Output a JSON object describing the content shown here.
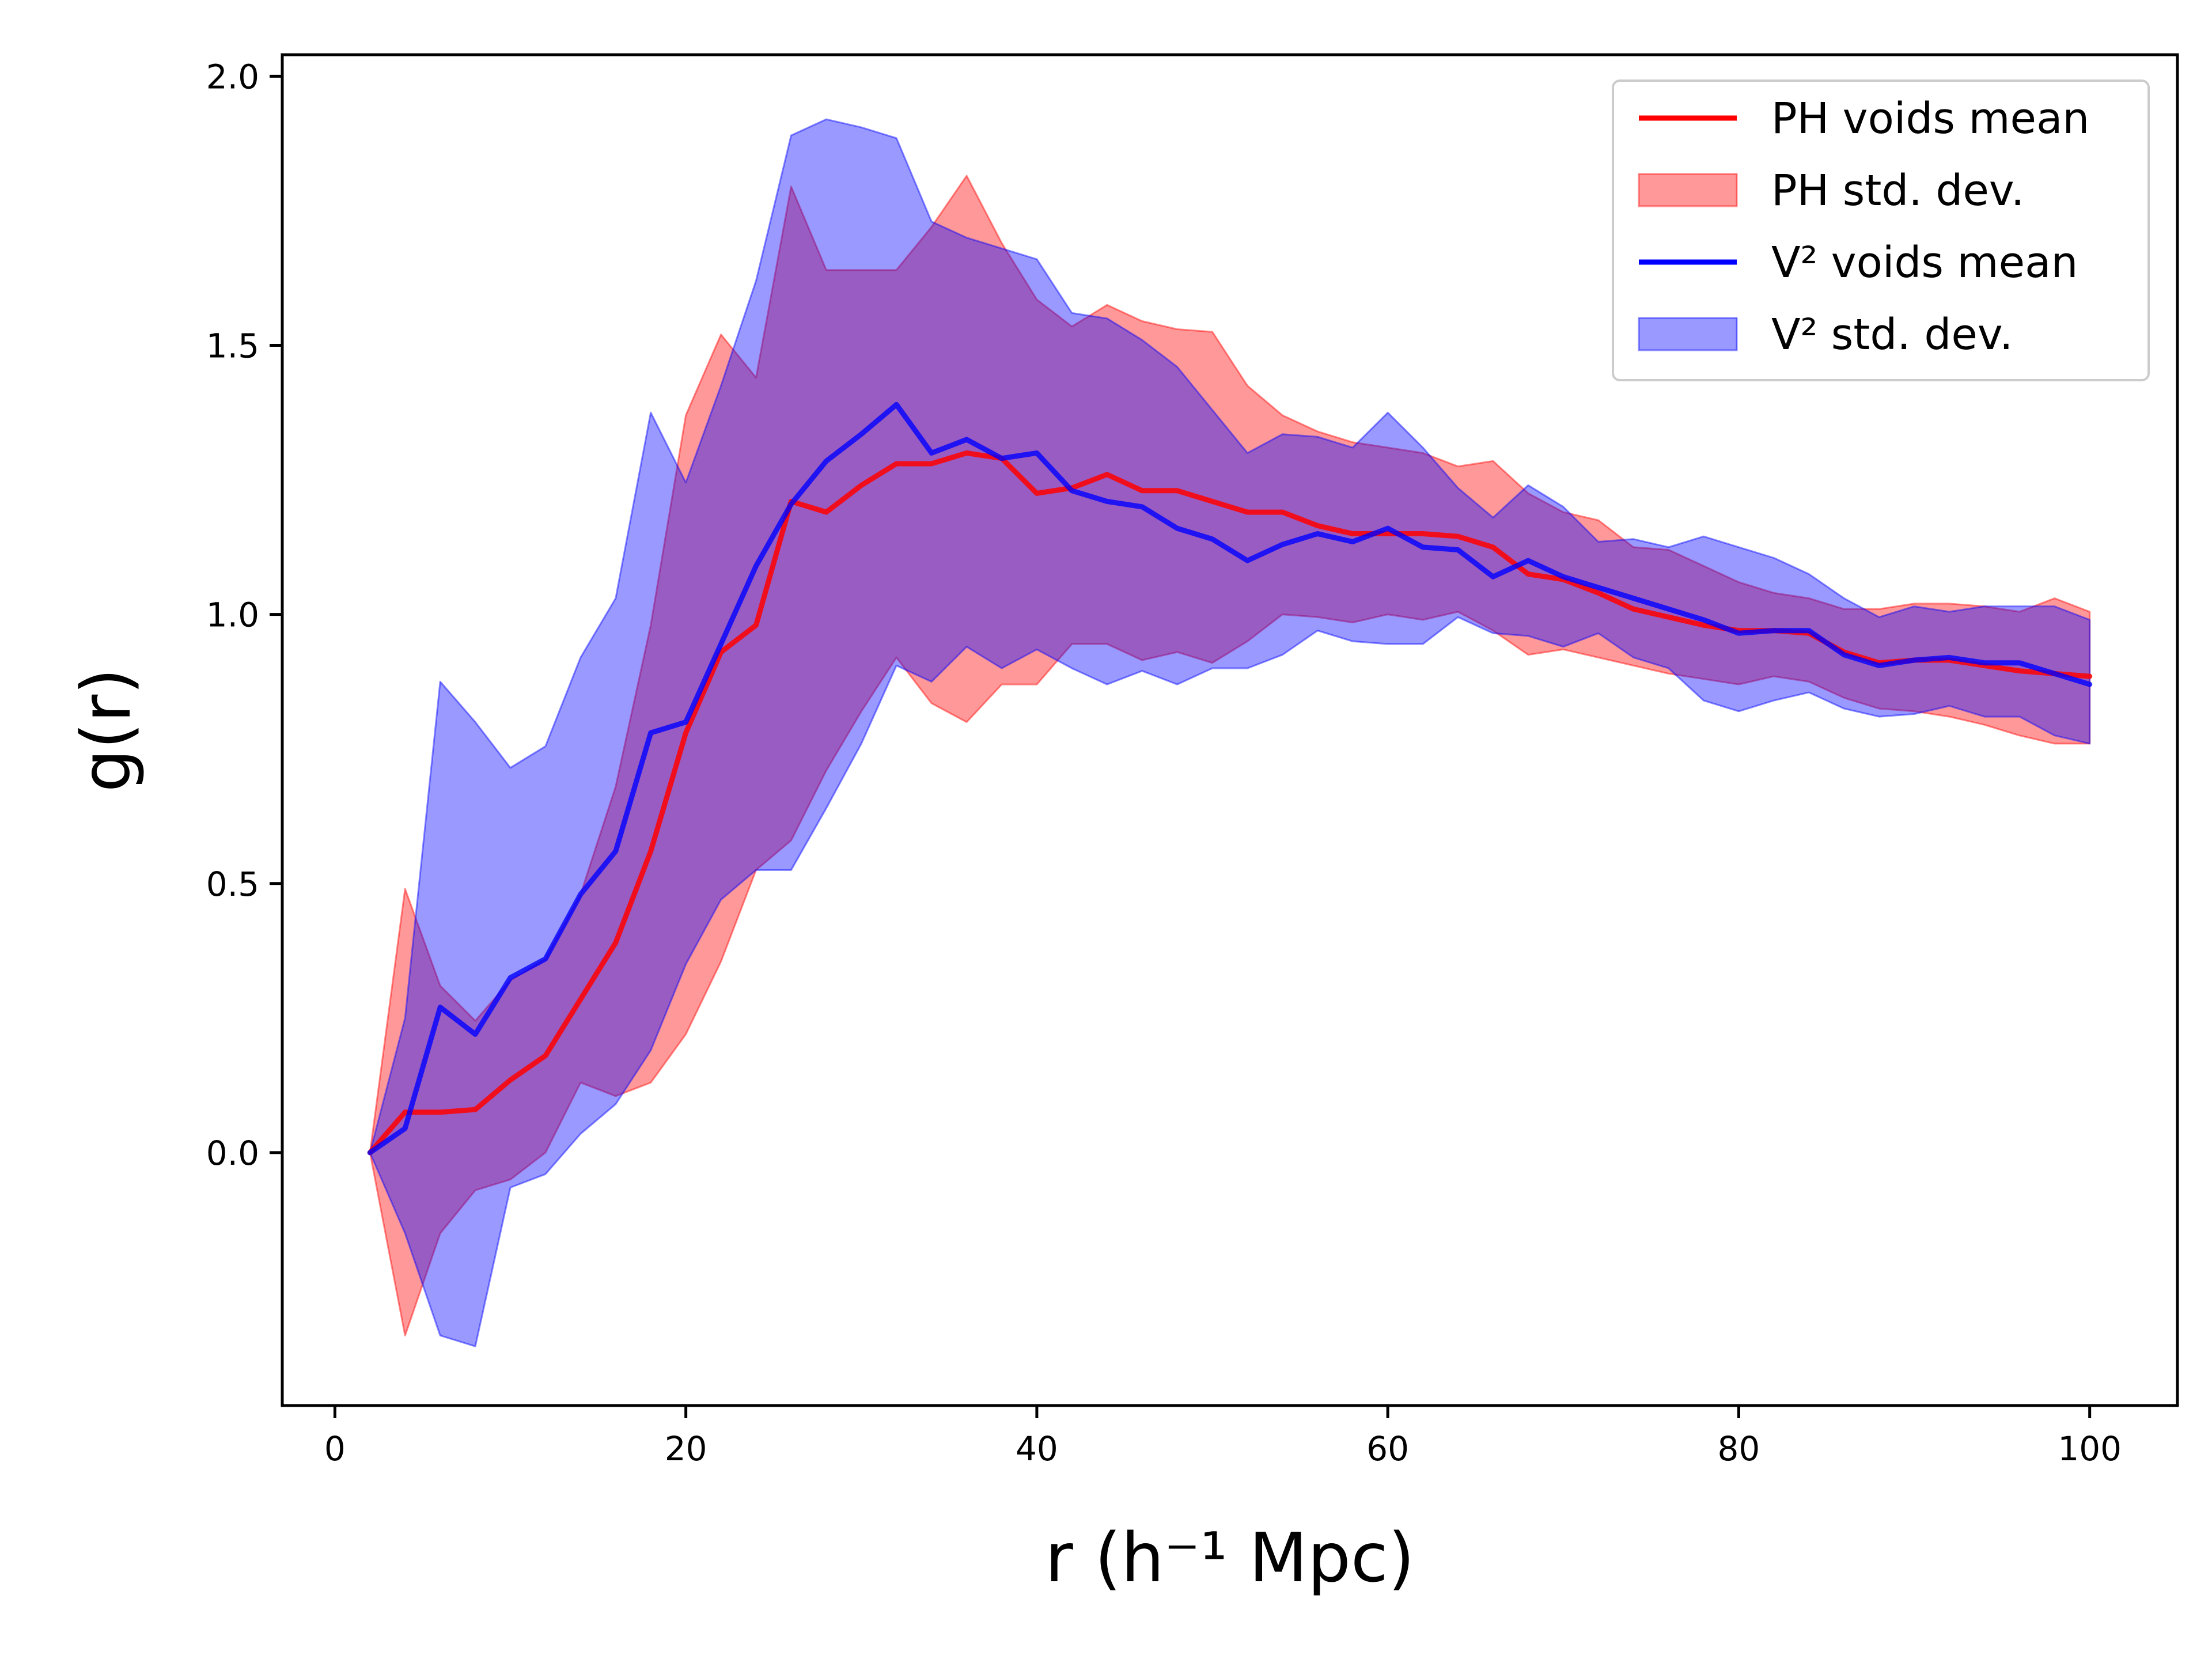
{
  "chart_data": {
    "type": "line",
    "title": "",
    "xlabel": "r (h⁻¹ Mpc)",
    "ylabel": "g(r)",
    "xlim": [
      -3,
      105
    ],
    "ylim": [
      -0.47,
      2.04
    ],
    "grid": false,
    "legend_position": "top-right",
    "x_ticks": [
      "0",
      "20",
      "40",
      "60",
      "80",
      "100"
    ],
    "y_ticks": [
      "0.0",
      "0.5",
      "1.0",
      "1.5",
      "2.0"
    ],
    "x": [
      2,
      4,
      6,
      8,
      10,
      12,
      14,
      16,
      18,
      20,
      22,
      24,
      26,
      28,
      30,
      32,
      34,
      36,
      38,
      40,
      42,
      44,
      46,
      48,
      50,
      52,
      54,
      56,
      58,
      60,
      62,
      64,
      66,
      68,
      70,
      72,
      74,
      76,
      78,
      80,
      82,
      84,
      86,
      88,
      90,
      92,
      94,
      96,
      98,
      100
    ],
    "series": [
      {
        "name": "PH voids mean",
        "std_name": "PH std. dev.",
        "color": "#ff0000",
        "fill_color": "#ff0000",
        "mean": [
          0.0,
          0.075,
          0.075,
          0.08,
          0.135,
          0.18,
          0.285,
          0.39,
          0.56,
          0.78,
          0.93,
          0.98,
          1.21,
          1.19,
          1.24,
          1.28,
          1.28,
          1.3,
          1.29,
          1.225,
          1.235,
          1.26,
          1.23,
          1.23,
          1.21,
          1.19,
          1.19,
          1.165,
          1.15,
          1.15,
          1.15,
          1.145,
          1.125,
          1.075,
          1.065,
          1.04,
          1.01,
          0.995,
          0.98,
          0.97,
          0.97,
          0.965,
          0.93,
          0.91,
          0.915,
          0.915,
          0.905,
          0.895,
          0.89,
          0.885
        ],
        "upper": [
          0.0,
          0.49,
          0.31,
          0.245,
          0.32,
          0.36,
          0.48,
          0.68,
          0.98,
          1.37,
          1.52,
          1.44,
          1.795,
          1.64,
          1.64,
          1.64,
          1.72,
          1.815,
          1.69,
          1.585,
          1.535,
          1.575,
          1.545,
          1.53,
          1.525,
          1.425,
          1.37,
          1.34,
          1.32,
          1.31,
          1.3,
          1.275,
          1.285,
          1.225,
          1.19,
          1.175,
          1.125,
          1.12,
          1.09,
          1.06,
          1.04,
          1.03,
          1.01,
          1.01,
          1.02,
          1.02,
          1.015,
          1.005,
          1.03,
          1.005
        ],
        "lower": [
          0.0,
          -0.34,
          -0.15,
          -0.07,
          -0.05,
          0.0,
          0.13,
          0.105,
          0.13,
          0.22,
          0.355,
          0.525,
          0.58,
          0.71,
          0.82,
          0.92,
          0.835,
          0.8,
          0.87,
          0.87,
          0.945,
          0.945,
          0.915,
          0.93,
          0.91,
          0.95,
          1.0,
          0.995,
          0.985,
          1.0,
          0.99,
          1.005,
          0.97,
          0.925,
          0.935,
          0.92,
          0.905,
          0.89,
          0.88,
          0.87,
          0.885,
          0.875,
          0.845,
          0.825,
          0.82,
          0.81,
          0.795,
          0.775,
          0.76,
          0.76
        ]
      },
      {
        "name": "V² voids mean",
        "std_name": "V² std. dev.",
        "color": "#0000ff",
        "fill_color": "#0000ff",
        "mean": [
          0.0,
          0.045,
          0.27,
          0.22,
          0.325,
          0.36,
          0.48,
          0.56,
          0.78,
          0.8,
          0.945,
          1.09,
          1.205,
          1.285,
          1.335,
          1.39,
          1.3,
          1.325,
          1.29,
          1.3,
          1.23,
          1.21,
          1.2,
          1.16,
          1.14,
          1.1,
          1.13,
          1.15,
          1.135,
          1.16,
          1.125,
          1.12,
          1.07,
          1.1,
          1.07,
          1.05,
          1.03,
          1.01,
          0.99,
          0.965,
          0.97,
          0.97,
          0.925,
          0.905,
          0.915,
          0.92,
          0.91,
          0.91,
          0.89,
          0.87
        ],
        "upper": [
          0.0,
          0.25,
          0.875,
          0.8,
          0.715,
          0.755,
          0.92,
          1.03,
          1.375,
          1.245,
          1.425,
          1.62,
          1.89,
          1.92,
          1.905,
          1.885,
          1.73,
          1.7,
          1.68,
          1.66,
          1.56,
          1.55,
          1.51,
          1.46,
          1.38,
          1.3,
          1.335,
          1.33,
          1.31,
          1.375,
          1.31,
          1.235,
          1.18,
          1.24,
          1.2,
          1.135,
          1.14,
          1.125,
          1.145,
          1.125,
          1.105,
          1.075,
          1.03,
          0.995,
          1.015,
          1.005,
          1.015,
          1.015,
          1.015,
          0.99
        ],
        "lower": [
          0.0,
          -0.15,
          -0.34,
          -0.36,
          -0.065,
          -0.04,
          0.035,
          0.09,
          0.19,
          0.35,
          0.47,
          0.525,
          0.525,
          0.64,
          0.76,
          0.905,
          0.875,
          0.94,
          0.9,
          0.935,
          0.9,
          0.87,
          0.895,
          0.87,
          0.9,
          0.9,
          0.925,
          0.97,
          0.95,
          0.945,
          0.945,
          0.995,
          0.965,
          0.96,
          0.94,
          0.965,
          0.92,
          0.9,
          0.84,
          0.82,
          0.84,
          0.855,
          0.825,
          0.81,
          0.815,
          0.83,
          0.81,
          0.81,
          0.775,
          0.76
        ]
      }
    ]
  }
}
